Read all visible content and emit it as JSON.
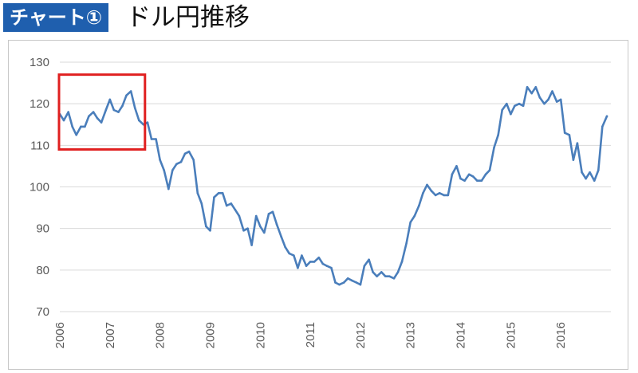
{
  "header": {
    "badge": "チャート①",
    "title": "ドル円推移"
  },
  "colors": {
    "badge_bg": "#1f5fae",
    "line": "#4a7ebb",
    "highlight_box": "#e02020",
    "grid": "#d9d9d9"
  },
  "chart_data": {
    "type": "line",
    "title": "",
    "xlabel": "",
    "ylabel": "",
    "ylim": [
      70,
      130
    ],
    "yticks": [
      "70",
      "80",
      "90",
      "100",
      "110",
      "120",
      "130"
    ],
    "xticks": [
      "2006",
      "2007",
      "2008",
      "2009",
      "2010",
      "2011",
      "2012",
      "2013",
      "2014",
      "2015",
      "2016"
    ],
    "xlim": [
      2006.0,
      2016.95
    ],
    "grid": "horizontal",
    "legend": "none",
    "highlight": {
      "x_range": [
        2006.0,
        2007.7
      ],
      "y_range": [
        109,
        127
      ]
    },
    "series": [
      {
        "x": [
          2006.0,
          2006.08,
          2006.17,
          2006.25,
          2006.33,
          2006.42,
          2006.5,
          2006.58,
          2006.67,
          2006.75,
          2006.83,
          2006.92,
          2007.0,
          2007.08,
          2007.17,
          2007.25,
          2007.33,
          2007.42,
          2007.5,
          2007.58,
          2007.67,
          2007.75,
          2007.83,
          2007.92,
          2008.0,
          2008.08,
          2008.17,
          2008.25,
          2008.33,
          2008.42,
          2008.5,
          2008.58,
          2008.67,
          2008.75,
          2008.83,
          2008.92,
          2009.0,
          2009.08,
          2009.17,
          2009.25,
          2009.33,
          2009.42,
          2009.5,
          2009.58,
          2009.67,
          2009.75,
          2009.83,
          2009.92,
          2010.0,
          2010.08,
          2010.17,
          2010.25,
          2010.33,
          2010.42,
          2010.5,
          2010.58,
          2010.67,
          2010.75,
          2010.83,
          2010.92,
          2011.0,
          2011.08,
          2011.17,
          2011.25,
          2011.33,
          2011.42,
          2011.5,
          2011.58,
          2011.67,
          2011.75,
          2011.83,
          2011.92,
          2012.0,
          2012.08,
          2012.17,
          2012.25,
          2012.33,
          2012.42,
          2012.5,
          2012.58,
          2012.67,
          2012.75,
          2012.83,
          2012.92,
          2013.0,
          2013.08,
          2013.17,
          2013.25,
          2013.33,
          2013.42,
          2013.5,
          2013.58,
          2013.67,
          2013.75,
          2013.83,
          2013.92,
          2014.0,
          2014.08,
          2014.17,
          2014.25,
          2014.33,
          2014.42,
          2014.5,
          2014.58,
          2014.67,
          2014.75,
          2014.83,
          2014.92,
          2015.0,
          2015.08,
          2015.17,
          2015.25,
          2015.33,
          2015.42,
          2015.5,
          2015.58,
          2015.67,
          2015.75,
          2015.83,
          2015.92,
          2016.0,
          2016.08,
          2016.17,
          2016.25,
          2016.33,
          2016.42,
          2016.5,
          2016.58,
          2016.67,
          2016.75,
          2016.83,
          2016.92
        ],
        "values": [
          117.5,
          116.0,
          118.0,
          114.5,
          112.5,
          114.5,
          114.5,
          117.0,
          118.0,
          116.5,
          115.5,
          118.5,
          121.0,
          118.5,
          118.0,
          119.5,
          122.0,
          123.0,
          119.0,
          116.0,
          115.0,
          115.5,
          111.5,
          111.5,
          106.5,
          104.0,
          99.5,
          104.0,
          105.5,
          106.0,
          108.0,
          108.5,
          106.5,
          98.5,
          96.0,
          90.5,
          89.5,
          97.5,
          98.5,
          98.5,
          95.5,
          96.0,
          94.5,
          93.0,
          89.5,
          90.0,
          86.0,
          93.0,
          90.5,
          89.0,
          93.5,
          94.0,
          91.0,
          88.0,
          85.5,
          84.0,
          83.5,
          80.5,
          83.5,
          81.0,
          82.0,
          82.0,
          83.0,
          81.5,
          81.0,
          80.5,
          77.0,
          76.5,
          77.0,
          78.0,
          77.5,
          77.0,
          76.5,
          81.0,
          82.5,
          79.5,
          78.5,
          79.5,
          78.5,
          78.5,
          78.0,
          79.5,
          82.0,
          86.5,
          91.5,
          93.0,
          95.5,
          98.5,
          100.5,
          99.0,
          98.0,
          98.5,
          98.0,
          98.0,
          103.0,
          105.0,
          102.0,
          101.5,
          103.0,
          102.5,
          101.5,
          101.5,
          103.0,
          104.0,
          109.5,
          112.5,
          118.5,
          120.0,
          117.5,
          119.5,
          120.0,
          119.5,
          124.0,
          122.5,
          124.0,
          121.5,
          120.0,
          121.0,
          123.0,
          120.5,
          121.0,
          113.0,
          112.5,
          106.5,
          110.5,
          103.5,
          102.0,
          103.5,
          101.5,
          104.0,
          114.5,
          117.0
        ]
      }
    ]
  }
}
